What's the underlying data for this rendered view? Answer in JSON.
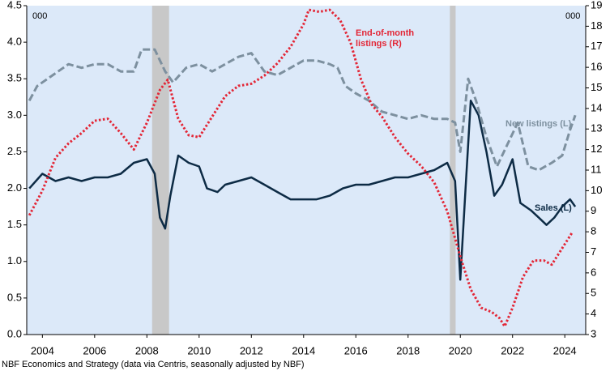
{
  "chart_data": {
    "type": "line",
    "unit_left": "000",
    "unit_right": "000",
    "source": "NBF Economics and Strategy (data via Centris, seasonally adjusted by NBF)",
    "xlim": [
      2003.4,
      2024.8
    ],
    "xticks": [
      2004,
      2006,
      2008,
      2010,
      2012,
      2014,
      2016,
      2018,
      2020,
      2022,
      2024
    ],
    "ylim": [
      0,
      4.5
    ],
    "yticks": [
      {
        "value": 0,
        "label": "0.0"
      },
      0.5,
      {
        "value": 1,
        "label": "1.0"
      },
      1.5,
      {
        "value": 2,
        "label": "2.0"
      },
      2.5,
      {
        "value": 3,
        "label": "3.0"
      },
      3.5,
      {
        "value": 4,
        "label": "4.0"
      },
      4.5
    ],
    "y2lim": [
      3,
      19
    ],
    "y2ticks": [
      3,
      4,
      5,
      6,
      7,
      8,
      9,
      10,
      11,
      12,
      13,
      14,
      15,
      16,
      17,
      18,
      19
    ],
    "shaded_periods": [
      [
        2008.2,
        2008.85
      ],
      [
        2019.6,
        2019.82
      ]
    ],
    "series": [
      {
        "name": "Sales (L)",
        "color": "#0d2b45",
        "style": "solid",
        "x": [
          2003.5,
          2004,
          2004.5,
          2005,
          2005.5,
          2006,
          2006.5,
          2007,
          2007.5,
          2008,
          2008.3,
          2008.5,
          2008.7,
          2008.9,
          2009.2,
          2009.6,
          2010,
          2010.3,
          2010.7,
          2011,
          2011.5,
          2012,
          2012.5,
          2013,
          2013.5,
          2014,
          2014.5,
          2015,
          2015.5,
          2016,
          2016.5,
          2017,
          2017.5,
          2018,
          2018.5,
          2019,
          2019.5,
          2019.8,
          2020,
          2020.2,
          2020.4,
          2020.7,
          2021,
          2021.3,
          2021.6,
          2022,
          2022.3,
          2022.7,
          2023,
          2023.3,
          2023.6,
          2023.9,
          2024.2,
          2024.4
        ],
        "values": [
          2.0,
          2.2,
          2.1,
          2.15,
          2.1,
          2.15,
          2.15,
          2.2,
          2.35,
          2.4,
          2.2,
          1.6,
          1.45,
          1.9,
          2.45,
          2.35,
          2.3,
          2.0,
          1.95,
          2.05,
          2.1,
          2.15,
          2.05,
          1.95,
          1.85,
          1.85,
          1.85,
          1.9,
          2.0,
          2.05,
          2.05,
          2.1,
          2.15,
          2.15,
          2.2,
          2.25,
          2.35,
          2.1,
          0.75,
          2.0,
          3.2,
          3.0,
          2.5,
          1.9,
          2.05,
          2.4,
          1.8,
          1.7,
          1.6,
          1.5,
          1.6,
          1.75,
          1.85,
          1.75
        ]
      },
      {
        "name": "New listings (L)",
        "color": "#7d909f",
        "style": "dashed",
        "x": [
          2003.5,
          2003.8,
          2004.2,
          2004.6,
          2005,
          2005.5,
          2006,
          2006.5,
          2007,
          2007.5,
          2007.8,
          2008.3,
          2008.7,
          2009,
          2009.5,
          2010,
          2010.5,
          2011,
          2011.5,
          2012,
          2012.5,
          2013,
          2013.5,
          2014,
          2014.5,
          2015,
          2015.3,
          2015.6,
          2016,
          2016.5,
          2017,
          2017.5,
          2018,
          2018.5,
          2019,
          2019.5,
          2019.8,
          2020,
          2020.3,
          2020.6,
          2021,
          2021.4,
          2021.8,
          2022.2,
          2022.6,
          2023,
          2023.5,
          2023.9,
          2024.2,
          2024.4
        ],
        "values": [
          3.2,
          3.4,
          3.5,
          3.6,
          3.7,
          3.65,
          3.7,
          3.7,
          3.6,
          3.6,
          3.9,
          3.9,
          3.6,
          3.45,
          3.65,
          3.7,
          3.6,
          3.7,
          3.8,
          3.85,
          3.6,
          3.55,
          3.65,
          3.75,
          3.75,
          3.7,
          3.65,
          3.4,
          3.3,
          3.2,
          3.05,
          3.0,
          2.95,
          3.0,
          2.95,
          2.95,
          2.9,
          2.5,
          3.5,
          3.2,
          2.7,
          2.3,
          2.6,
          2.9,
          2.3,
          2.25,
          2.35,
          2.45,
          2.8,
          3.0
        ]
      },
      {
        "name": "End-of-month listings (R)",
        "color": "#e32636",
        "style": "dotted",
        "axis": "y2",
        "x": [
          2003.5,
          2004,
          2004.5,
          2005,
          2005.5,
          2006,
          2006.5,
          2007,
          2007.5,
          2008,
          2008.5,
          2008.8,
          2009.2,
          2009.6,
          2010,
          2010.5,
          2011,
          2011.5,
          2012,
          2012.5,
          2013,
          2013.5,
          2014,
          2014.2,
          2014.6,
          2015,
          2015.4,
          2015.8,
          2016.2,
          2016.6,
          2017,
          2017.5,
          2018,
          2018.5,
          2019,
          2019.5,
          2020,
          2020.4,
          2020.8,
          2021.2,
          2021.5,
          2021.7,
          2022,
          2022.4,
          2022.8,
          2023.2,
          2023.5,
          2023.9,
          2024.3
        ],
        "values": [
          8.8,
          10.0,
          11.6,
          12.3,
          12.8,
          13.4,
          13.5,
          12.8,
          12.0,
          13.3,
          14.9,
          15.4,
          13.5,
          12.7,
          12.6,
          13.6,
          14.6,
          15.1,
          15.2,
          15.6,
          16.2,
          17.0,
          18.1,
          18.8,
          18.7,
          18.8,
          18.3,
          17.2,
          15.4,
          14.2,
          13.6,
          12.6,
          11.8,
          11.2,
          10.4,
          9.0,
          6.8,
          5.2,
          4.3,
          4.1,
          3.8,
          3.4,
          4.3,
          5.8,
          6.6,
          6.6,
          6.4,
          7.2,
          8.0
        ]
      }
    ]
  }
}
